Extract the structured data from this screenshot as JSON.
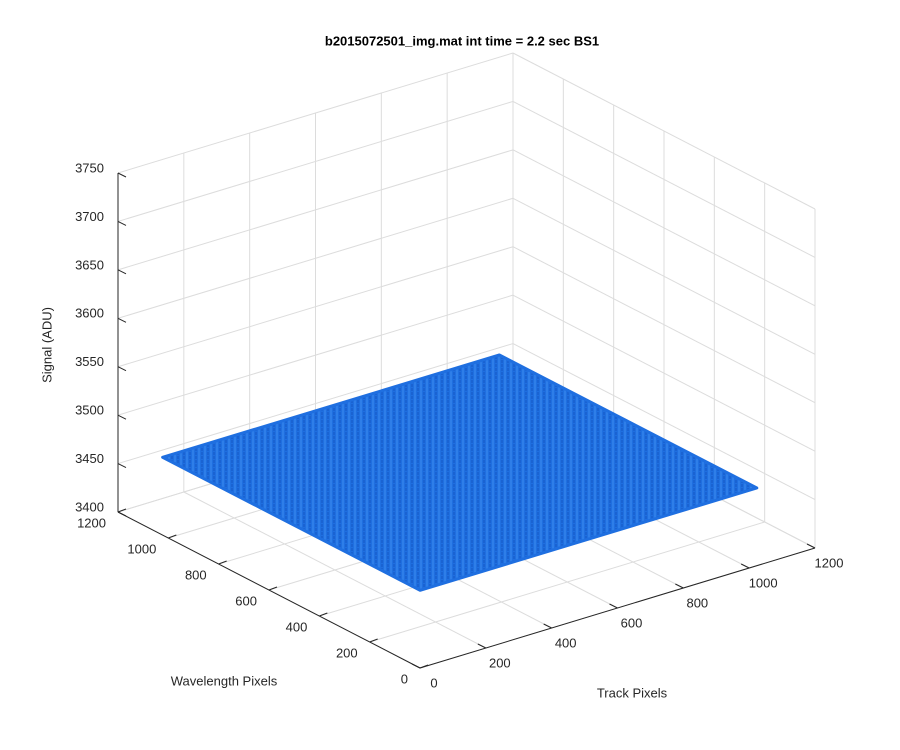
{
  "chart_data": {
    "type": "surface",
    "title": "b2015072501_img.mat int time = 2.2 sec   BS1",
    "xlabel": "Track Pixels",
    "ylabel": "Wavelength Pixels",
    "zlabel": "Signal (ADU)",
    "x": [
      1,
      1024
    ],
    "y": [
      1,
      1024
    ],
    "z": [
      [
        3480,
        3480
      ],
      [
        3480,
        3480
      ]
    ],
    "color": "#1f6fe0",
    "xlim": [
      0,
      1200
    ],
    "ylim": [
      0,
      1200
    ],
    "zlim": [
      3400,
      3750
    ],
    "xticks": [
      0,
      200,
      400,
      600,
      800,
      1000,
      1200
    ],
    "yticks": [
      0,
      200,
      400,
      600,
      800,
      1000,
      1200
    ],
    "zticks": [
      3400,
      3450,
      3500,
      3550,
      3600,
      3650,
      3700,
      3750
    ],
    "grid": true
  }
}
